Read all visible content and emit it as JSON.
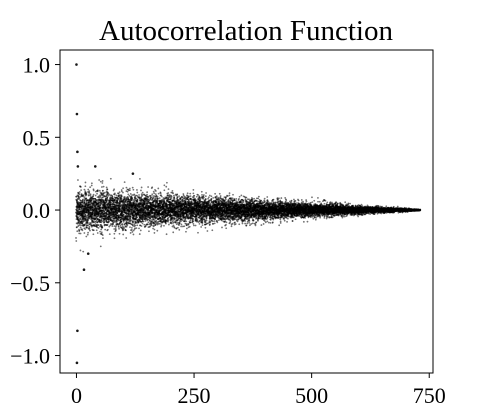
{
  "chart_data": {
    "type": "scatter",
    "title": "Autocorrelation Function",
    "xlabel": "",
    "ylabel": "",
    "xlim": [
      -35,
      758
    ],
    "ylim": [
      -1.12,
      1.1
    ],
    "x_ticks": [
      0,
      250,
      500,
      750
    ],
    "x_tick_labels": [
      "0",
      "250",
      "500",
      "750"
    ],
    "y_ticks": [
      1.0,
      0.5,
      0.0,
      -0.5,
      -1.0
    ],
    "y_tick_labels": [
      "1.0",
      "0.5",
      "0.0",
      "−0.5",
      "−1.0"
    ],
    "grid": false,
    "marker_color": "#000000",
    "n_lags": 730,
    "envelope": {
      "description_of_pattern": "dense cloud centred on 0; spread shrinks linearly from about ±0.15 at lag 0 to 0 at lag ~730",
      "max_abs_at_start": 0.15,
      "end_lag": 730
    },
    "highlighted_points": [
      {
        "x": 0,
        "y": 1.0
      },
      {
        "x": 1,
        "y": 0.66
      },
      {
        "x": 2,
        "y": 0.4
      },
      {
        "x": 3,
        "y": 0.3
      },
      {
        "x": 16,
        "y": -0.41
      },
      {
        "x": 2,
        "y": -0.83
      },
      {
        "x": 1,
        "y": -1.05
      },
      {
        "x": 40,
        "y": 0.3
      },
      {
        "x": 120,
        "y": 0.25
      },
      {
        "x": 25,
        "y": -0.3
      }
    ]
  }
}
